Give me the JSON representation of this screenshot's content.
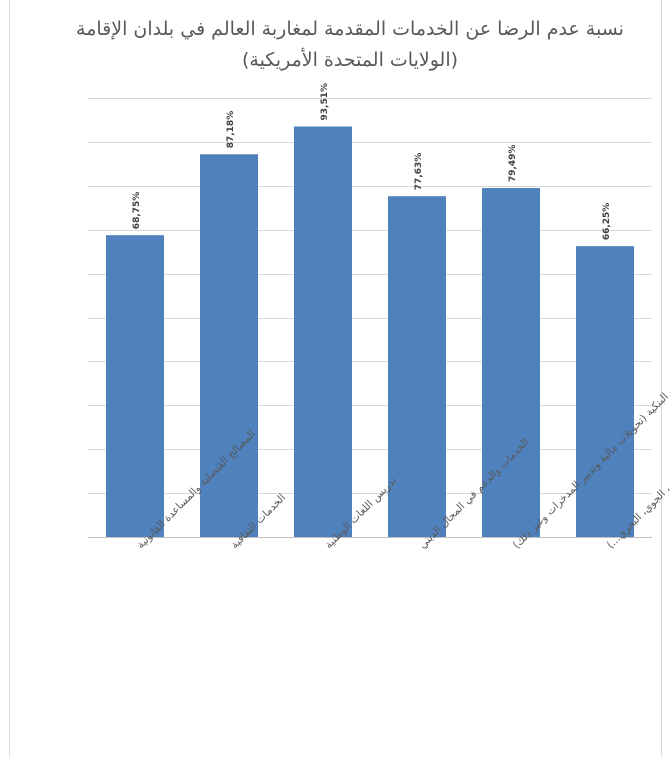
{
  "chart_data": {
    "type": "bar",
    "title": "نسبة عدم الرضا عن الخدمات المقدمة لمغاربة العالم في بلدان الإقامة (الولايات المتحدة الأمريكية)",
    "categories": [
      "المصالح القنصلية والمساعدة القانونية",
      "الخدمات الثقافية",
      "تدريس اللغات الوطنية",
      "الخدمات والدعم في المجال الديني",
      "الخدمات البنكية (تحويلات مالية وتدبير المدخرات وغير ذلك)",
      "خدمات النقل (البري، الجوي، البحري...)"
    ],
    "values": [
      68.75,
      87.18,
      93.51,
      77.63,
      79.49,
      66.25
    ],
    "data_labels": [
      "68,75%",
      "87,18%",
      "93,51%",
      "77,63%",
      "79,49%",
      "66,25%"
    ],
    "ylim": [
      0,
      100
    ],
    "grid": true,
    "bar_color": "#4f81bd"
  }
}
